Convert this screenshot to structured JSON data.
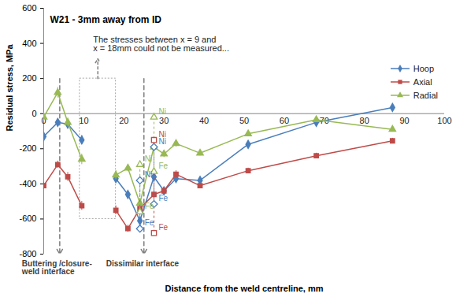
{
  "chart_data": {
    "type": "line",
    "title": "W21 - 3mm away from ID",
    "x_label": "Distance from the weld centreline, mm",
    "y_label": "Residual stress, MPa",
    "xlim": [
      0,
      100
    ],
    "xticks": [
      0,
      10,
      20,
      30,
      40,
      50,
      60,
      70,
      80,
      90,
      100
    ],
    "ylim": [
      -800,
      600
    ],
    "yticks": [
      -800,
      -600,
      -400,
      -200,
      0,
      200,
      400,
      600
    ],
    "grid": false,
    "legend": "right",
    "x": [
      0,
      3.5,
      6,
      9.5,
      null,
      18,
      21,
      24,
      27.5,
      30,
      33,
      39,
      51,
      68,
      87
    ],
    "series": [
      {
        "name": "Hoop",
        "color": "#4a7ebb",
        "marker": "diamond",
        "values": [
          -130,
          -50,
          -60,
          -150,
          null,
          -370,
          -460,
          -610,
          -360,
          -440,
          -370,
          -380,
          -175,
          -50,
          35
        ],
        "errors": [
          20,
          20,
          25,
          25,
          null,
          20,
          20,
          25,
          25,
          20,
          20,
          20,
          15,
          20,
          15
        ]
      },
      {
        "name": "Axial",
        "color": "#be4b48",
        "marker": "square",
        "values": [
          -410,
          -290,
          -360,
          -525,
          null,
          -550,
          -655,
          -540,
          -460,
          -440,
          -345,
          -410,
          -325,
          -240,
          -155
        ],
        "errors": [
          20,
          20,
          25,
          25,
          null,
          25,
          20,
          25,
          25,
          20,
          20,
          15,
          15,
          15,
          15
        ]
      },
      {
        "name": "Radial",
        "color": "#98b954",
        "marker": "triangle",
        "values": [
          -20,
          120,
          -50,
          -260,
          null,
          -350,
          -310,
          -510,
          -190,
          -230,
          -170,
          -225,
          -115,
          -35,
          -90
        ],
        "errors": [
          25,
          30,
          25,
          30,
          null,
          25,
          20,
          25,
          25,
          20,
          20,
          15,
          15,
          15,
          15
        ]
      }
    ],
    "reference_points": [
      {
        "series": "Hoop",
        "label": "Ni",
        "x": 24,
        "value": -380
      },
      {
        "series": "Hoop",
        "label": "Fe",
        "x": 24,
        "value": -655
      },
      {
        "series": "Radial",
        "label": "Ni",
        "x": 24,
        "value": -290
      },
      {
        "series": "Radial",
        "label": "Fe",
        "x": 24,
        "value": -560
      },
      {
        "series": "Hoop",
        "label": "Ni",
        "x": 27.5,
        "value": -190
      },
      {
        "series": "Hoop",
        "label": "Fe",
        "x": 27.5,
        "value": -515
      },
      {
        "series": "Axial",
        "label": "Ni",
        "x": 27.5,
        "value": -150
      },
      {
        "series": "Axial",
        "label": "Fe",
        "x": 27.5,
        "value": -680
      },
      {
        "series": "Radial",
        "label": "Ni",
        "x": 27.5,
        "value": -20
      },
      {
        "series": "Radial",
        "label": "Fe",
        "x": 27.5,
        "value": -330
      }
    ],
    "annotations": [
      {
        "text": "Buttering /closure-\nweld interface",
        "x": 4
      },
      {
        "text": "Dissimilar interface",
        "x": 25
      }
    ],
    "unmeasured_region": {
      "text": "The stresses between x = 9 and\nx = 18mm could not be measured...",
      "x1": 9,
      "x2": 18,
      "y1": -600,
      "y2": 200
    }
  }
}
